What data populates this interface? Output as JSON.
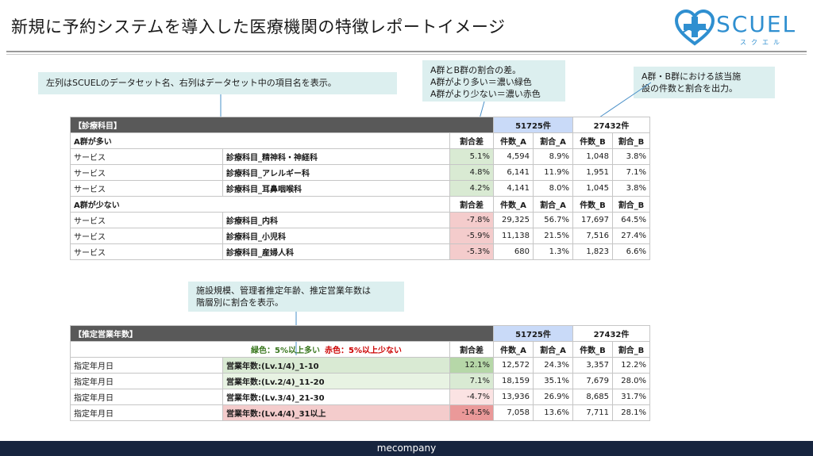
{
  "title": "新規に予約システムを導入した医療機関の特徴レポートイメージ",
  "logo": {
    "text": "SCUEL",
    "sub": "スクエル"
  },
  "callouts": {
    "columns": "左列はSCUELのデータセット名、右列はデータセット中の項目名を表示。",
    "diff_lines": [
      "A群とB群の割合の差。",
      "A群がより多い＝濃い緑色",
      "A群がより少ない＝濃い赤色"
    ],
    "counts_lines": [
      "A群・B群における該当施",
      "設の件数と割合を出力。"
    ],
    "tiers_lines": [
      "施設規模、管理者推定年齢、推定営業年数は",
      "階層別に割合を表示。"
    ]
  },
  "colors": {
    "green_dark": "#b6d7a8",
    "green_light": "#d9ead3",
    "red_dark": "#ea9999",
    "red_light": "#f4cccc",
    "header_dark": "#595959",
    "header_blue": "#c9daf8",
    "footer": "#17253f"
  },
  "table1": {
    "title": "【診療科目】",
    "total_a": "51725件",
    "total_b": "27432件",
    "col_diff": "割合差",
    "col_count_a": "件数_A",
    "col_ratio_a": "割合_A",
    "col_count_b": "件数_B",
    "col_ratio_b": "割合_B",
    "group_more": "A群が多い",
    "group_less": "A群が少ない",
    "rows_more": [
      {
        "dataset": "サービス",
        "item": "診療科目_精神科・神経科",
        "diff": "5.1%",
        "count_a": "4,594",
        "ratio_a": "8.9%",
        "count_b": "1,048",
        "ratio_b": "3.8%"
      },
      {
        "dataset": "サービス",
        "item": "診療科目_アレルギー科",
        "diff": "4.8%",
        "count_a": "6,141",
        "ratio_a": "11.9%",
        "count_b": "1,951",
        "ratio_b": "7.1%"
      },
      {
        "dataset": "サービス",
        "item": "診療科目_耳鼻咽喉科",
        "diff": "4.2%",
        "count_a": "4,141",
        "ratio_a": "8.0%",
        "count_b": "1,045",
        "ratio_b": "3.8%"
      }
    ],
    "rows_less": [
      {
        "dataset": "サービス",
        "item": "診療科目_内科",
        "diff": "-7.8%",
        "count_a": "29,325",
        "ratio_a": "56.7%",
        "count_b": "17,697",
        "ratio_b": "64.5%"
      },
      {
        "dataset": "サービス",
        "item": "診療科目_小児科",
        "diff": "-5.9%",
        "count_a": "11,138",
        "ratio_a": "21.5%",
        "count_b": "7,516",
        "ratio_b": "27.4%"
      },
      {
        "dataset": "サービス",
        "item": "診療科目_産婦人科",
        "diff": "-5.3%",
        "count_a": "680",
        "ratio_a": "1.3%",
        "count_b": "1,823",
        "ratio_b": "6.6%"
      }
    ]
  },
  "table2": {
    "title": "【推定営業年数】",
    "total_a": "51725件",
    "total_b": "27432件",
    "legend_green": "緑色：5%以上多い",
    "legend_red": "赤色：5%以上少ない",
    "col_diff": "割合差",
    "col_count_a": "件数_A",
    "col_ratio_a": "割合_A",
    "col_count_b": "件数_B",
    "col_ratio_b": "割合_B",
    "rows": [
      {
        "dataset": "指定年月日",
        "item": "営業年数:(Lv.1/4)_1-10",
        "diff": "12.1%",
        "count_a": "12,572",
        "ratio_a": "24.3%",
        "count_b": "3,357",
        "ratio_b": "12.2%"
      },
      {
        "dataset": "指定年月日",
        "item": "営業年数:(Lv.2/4)_11-20",
        "diff": "7.1%",
        "count_a": "18,159",
        "ratio_a": "35.1%",
        "count_b": "7,679",
        "ratio_b": "28.0%"
      },
      {
        "dataset": "指定年月日",
        "item": "営業年数:(Lv.3/4)_21-30",
        "diff": "-4.7%",
        "count_a": "13,936",
        "ratio_a": "26.9%",
        "count_b": "8,685",
        "ratio_b": "31.7%"
      },
      {
        "dataset": "指定年月日",
        "item": "営業年数:(Lv.4/4)_31以上",
        "diff": "-14.5%",
        "count_a": "7,058",
        "ratio_a": "13.6%",
        "count_b": "7,711",
        "ratio_b": "28.1%"
      }
    ]
  },
  "footer": "mecompany"
}
